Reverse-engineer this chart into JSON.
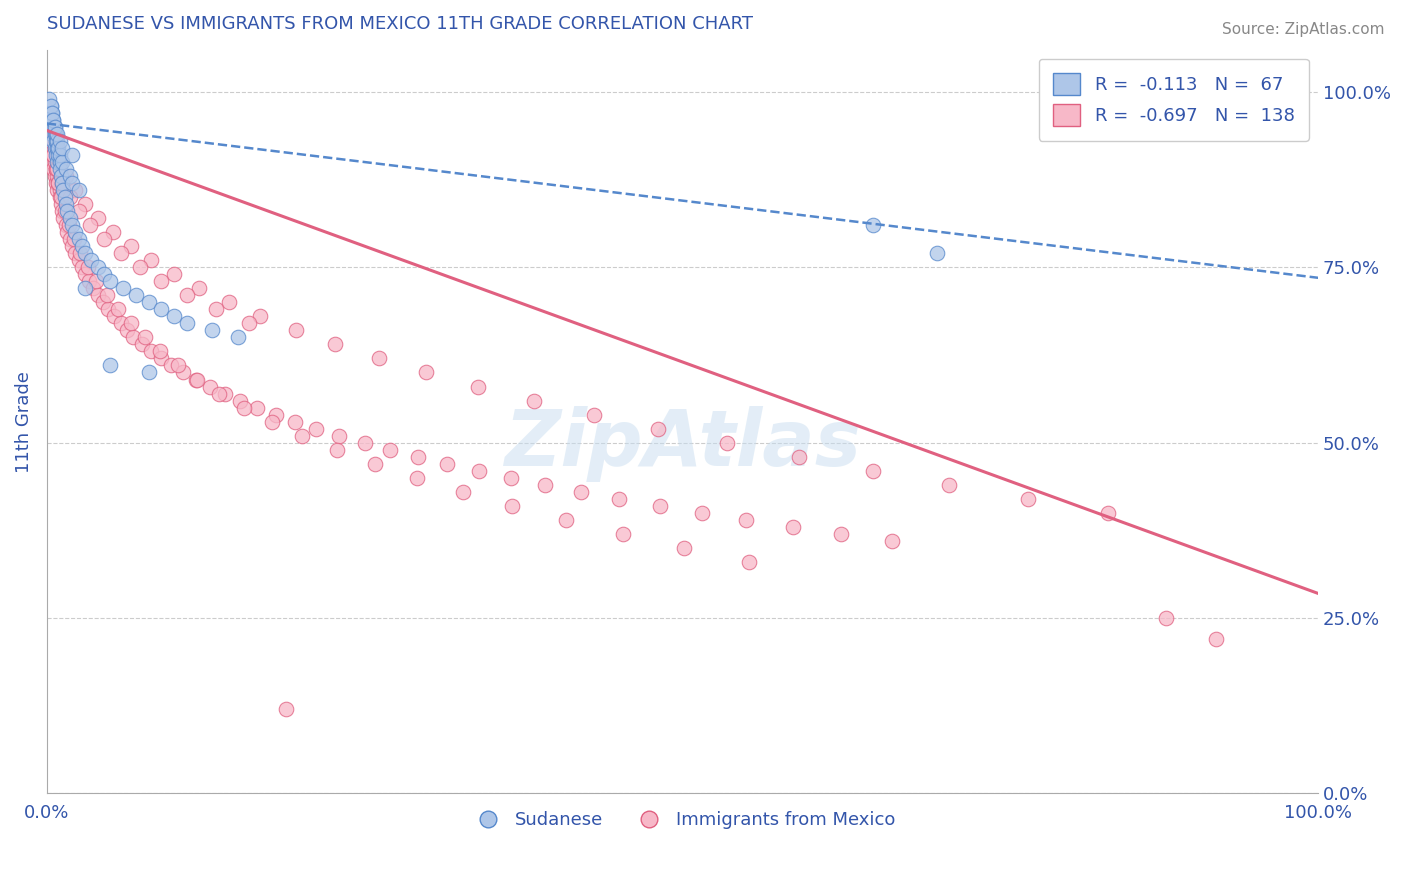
{
  "title": "SUDANESE VS IMMIGRANTS FROM MEXICO 11TH GRADE CORRELATION CHART",
  "source": "Source: ZipAtlas.com",
  "ylabel": "11th Grade",
  "legend_blue_r_val": "-0.113",
  "legend_blue_n_val": "67",
  "legend_pink_r_val": "-0.697",
  "legend_pink_n_val": "138",
  "legend_blue_label": "Sudanese",
  "legend_pink_label": "Immigrants from Mexico",
  "blue_fill_color": "#aec6e8",
  "pink_fill_color": "#f7b8c8",
  "blue_edge_color": "#5588cc",
  "pink_edge_color": "#e06080",
  "blue_line_color": "#5588cc",
  "pink_line_color": "#e06080",
  "title_color": "#3355aa",
  "source_color": "#888888",
  "axis_color": "#3355aa",
  "grid_color": "#cccccc",
  "watermark_color": "#c8ddf0",
  "right_yticks": [
    0.0,
    0.25,
    0.5,
    0.75,
    1.0
  ],
  "right_yticklabels": [
    "0.0%",
    "25.0%",
    "50.0%",
    "75.0%",
    "100.0%"
  ],
  "xlim": [
    0.0,
    1.0
  ],
  "ylim": [
    0.0,
    1.06
  ],
  "blue_trend_x0": 0.0,
  "blue_trend_y0": 0.955,
  "blue_trend_x1": 1.0,
  "blue_trend_y1": 0.735,
  "pink_trend_x0": 0.0,
  "pink_trend_y0": 0.945,
  "pink_trend_x1": 1.0,
  "pink_trend_y1": 0.285,
  "blue_scatter_x": [
    0.002,
    0.003,
    0.003,
    0.004,
    0.004,
    0.005,
    0.005,
    0.006,
    0.006,
    0.007,
    0.007,
    0.008,
    0.008,
    0.009,
    0.01,
    0.01,
    0.011,
    0.012,
    0.013,
    0.014,
    0.015,
    0.016,
    0.018,
    0.02,
    0.022,
    0.025,
    0.028,
    0.03,
    0.035,
    0.04,
    0.045,
    0.05,
    0.06,
    0.07,
    0.08,
    0.09,
    0.1,
    0.11,
    0.13,
    0.15,
    0.003,
    0.004,
    0.005,
    0.006,
    0.007,
    0.008,
    0.009,
    0.01,
    0.012,
    0.015,
    0.018,
    0.02,
    0.025,
    0.002,
    0.003,
    0.004,
    0.005,
    0.006,
    0.008,
    0.01,
    0.012,
    0.02,
    0.03,
    0.05,
    0.08,
    0.65,
    0.7
  ],
  "blue_scatter_y": [
    0.96,
    0.97,
    0.95,
    0.96,
    0.94,
    0.95,
    0.93,
    0.94,
    0.92,
    0.93,
    0.91,
    0.92,
    0.9,
    0.91,
    0.9,
    0.89,
    0.88,
    0.87,
    0.86,
    0.85,
    0.84,
    0.83,
    0.82,
    0.81,
    0.8,
    0.79,
    0.78,
    0.77,
    0.76,
    0.75,
    0.74,
    0.73,
    0.72,
    0.71,
    0.7,
    0.69,
    0.68,
    0.67,
    0.66,
    0.65,
    0.98,
    0.97,
    0.96,
    0.95,
    0.94,
    0.93,
    0.92,
    0.91,
    0.9,
    0.89,
    0.88,
    0.87,
    0.86,
    0.99,
    0.98,
    0.97,
    0.96,
    0.95,
    0.94,
    0.93,
    0.92,
    0.91,
    0.72,
    0.61,
    0.6,
    0.81,
    0.77
  ],
  "pink_scatter_x": [
    0.002,
    0.003,
    0.003,
    0.004,
    0.004,
    0.005,
    0.005,
    0.006,
    0.006,
    0.007,
    0.007,
    0.008,
    0.008,
    0.009,
    0.01,
    0.01,
    0.011,
    0.012,
    0.013,
    0.015,
    0.016,
    0.018,
    0.02,
    0.022,
    0.025,
    0.028,
    0.03,
    0.033,
    0.036,
    0.04,
    0.044,
    0.048,
    0.053,
    0.058,
    0.063,
    0.068,
    0.075,
    0.082,
    0.09,
    0.098,
    0.107,
    0.117,
    0.128,
    0.14,
    0.152,
    0.165,
    0.18,
    0.195,
    0.212,
    0.23,
    0.25,
    0.27,
    0.292,
    0.315,
    0.34,
    0.365,
    0.392,
    0.42,
    0.45,
    0.482,
    0.515,
    0.55,
    0.587,
    0.625,
    0.665,
    0.007,
    0.009,
    0.011,
    0.014,
    0.017,
    0.021,
    0.026,
    0.032,
    0.039,
    0.047,
    0.056,
    0.066,
    0.077,
    0.089,
    0.103,
    0.118,
    0.135,
    0.155,
    0.177,
    0.201,
    0.228,
    0.258,
    0.291,
    0.327,
    0.366,
    0.408,
    0.453,
    0.501,
    0.552,
    0.006,
    0.01,
    0.015,
    0.022,
    0.03,
    0.04,
    0.052,
    0.066,
    0.082,
    0.1,
    0.12,
    0.143,
    0.168,
    0.196,
    0.227,
    0.261,
    0.298,
    0.339,
    0.383,
    0.43,
    0.481,
    0.535,
    0.592,
    0.65,
    0.71,
    0.772,
    0.835,
    0.88,
    0.92,
    0.003,
    0.005,
    0.008,
    0.012,
    0.018,
    0.025,
    0.034,
    0.045,
    0.058,
    0.073,
    0.09,
    0.11,
    0.133,
    0.159,
    0.188
  ],
  "pink_scatter_y": [
    0.94,
    0.93,
    0.91,
    0.92,
    0.9,
    0.91,
    0.89,
    0.9,
    0.88,
    0.89,
    0.87,
    0.88,
    0.86,
    0.87,
    0.86,
    0.85,
    0.84,
    0.83,
    0.82,
    0.81,
    0.8,
    0.79,
    0.78,
    0.77,
    0.76,
    0.75,
    0.74,
    0.73,
    0.72,
    0.71,
    0.7,
    0.69,
    0.68,
    0.67,
    0.66,
    0.65,
    0.64,
    0.63,
    0.62,
    0.61,
    0.6,
    0.59,
    0.58,
    0.57,
    0.56,
    0.55,
    0.54,
    0.53,
    0.52,
    0.51,
    0.5,
    0.49,
    0.48,
    0.47,
    0.46,
    0.45,
    0.44,
    0.43,
    0.42,
    0.41,
    0.4,
    0.39,
    0.38,
    0.37,
    0.36,
    0.89,
    0.87,
    0.85,
    0.83,
    0.81,
    0.79,
    0.77,
    0.75,
    0.73,
    0.71,
    0.69,
    0.67,
    0.65,
    0.63,
    0.61,
    0.59,
    0.57,
    0.55,
    0.53,
    0.51,
    0.49,
    0.47,
    0.45,
    0.43,
    0.41,
    0.39,
    0.37,
    0.35,
    0.33,
    0.92,
    0.9,
    0.88,
    0.86,
    0.84,
    0.82,
    0.8,
    0.78,
    0.76,
    0.74,
    0.72,
    0.7,
    0.68,
    0.66,
    0.64,
    0.62,
    0.6,
    0.58,
    0.56,
    0.54,
    0.52,
    0.5,
    0.48,
    0.46,
    0.44,
    0.42,
    0.4,
    0.25,
    0.22,
    0.93,
    0.91,
    0.89,
    0.87,
    0.85,
    0.83,
    0.81,
    0.79,
    0.77,
    0.75,
    0.73,
    0.71,
    0.69,
    0.67,
    0.12
  ]
}
